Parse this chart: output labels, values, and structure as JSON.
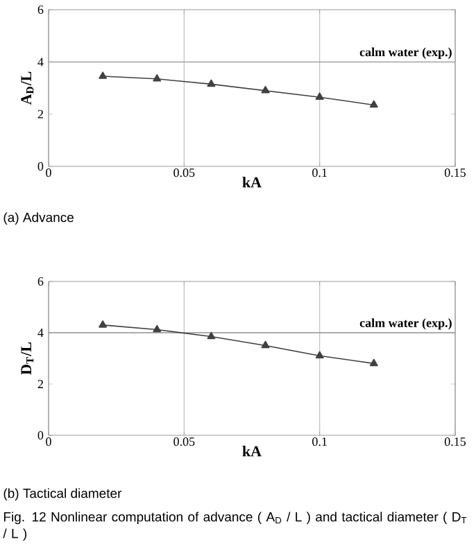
{
  "chart_data": [
    {
      "type": "line",
      "x": [
        0.02,
        0.04,
        0.06,
        0.08,
        0.1,
        0.12
      ],
      "values": [
        3.45,
        3.35,
        3.15,
        2.9,
        2.65,
        2.35
      ],
      "color": "#404040",
      "marker": "triangle",
      "line_style": "solid",
      "xlim": [
        0,
        0.15
      ],
      "ylim": [
        0,
        6
      ],
      "xticks": [
        0,
        0.05,
        0.1,
        0.15
      ],
      "yticks": [
        0,
        2,
        4,
        6
      ],
      "xlabel": "kA",
      "ylabel": "A$_{D}$/L",
      "grid": "x",
      "ref_lines": [
        {
          "axis": "y",
          "value": 4,
          "label": "calm water (exp.)",
          "color": "#909090"
        }
      ],
      "annotations": [
        "(a)  Advance"
      ]
    },
    {
      "type": "line",
      "x": [
        0.02,
        0.04,
        0.06,
        0.08,
        0.1,
        0.12
      ],
      "values": [
        4.3,
        4.12,
        3.85,
        3.5,
        3.1,
        2.8
      ],
      "color": "#404040",
      "marker": "triangle",
      "line_style": "solid",
      "xlim": [
        0,
        0.15
      ],
      "ylim": [
        0,
        6
      ],
      "xticks": [
        0,
        0.05,
        0.1,
        0.15
      ],
      "yticks": [
        0,
        2,
        4,
        6
      ],
      "xlabel": "kA",
      "ylabel": "D$_{T}$/L",
      "grid": "x",
      "ref_lines": [
        {
          "axis": "y",
          "value": 4,
          "label": "calm water (exp.)",
          "color": "#909090"
        }
      ],
      "annotations": [
        "(b)  Tactical diameter",
        "Fig. 12 Nonlinear computation of advance ( A$_{D}$ / L ) and tactical diameter ( D$_{T}$ / L )"
      ]
    }
  ]
}
